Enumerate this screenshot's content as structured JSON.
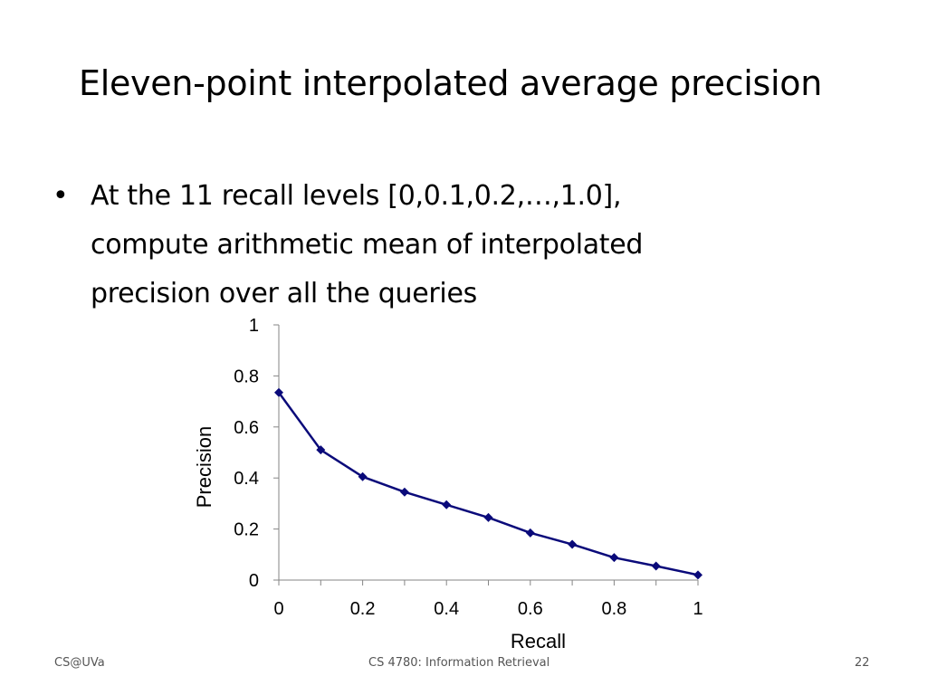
{
  "slide": {
    "title": "Eleven-point interpolated average precision",
    "bullet": {
      "symbol": "•",
      "lines": [
        "At the 11 recall levels [0,0.1,0.2,…,1.0],",
        "compute arithmetic mean of interpolated",
        "precision over all the queries"
      ]
    },
    "footer": {
      "left": "CS@UVa",
      "center": "CS 4780: Information Retrieval",
      "right": "22"
    }
  },
  "chart_data": {
    "type": "line",
    "title": "",
    "xlabel": "Recall",
    "ylabel": "Precision",
    "xlim": [
      0,
      1
    ],
    "ylim": [
      0,
      1
    ],
    "x_ticks": [
      "0",
      "0.2",
      "0.4",
      "0.6",
      "0.8",
      "1"
    ],
    "y_ticks": [
      "0",
      "0.2",
      "0.4",
      "0.6",
      "0.8",
      "1"
    ],
    "x_tick_values": [
      0,
      0.2,
      0.4,
      0.6,
      0.8,
      1
    ],
    "y_tick_values": [
      0,
      0.2,
      0.4,
      0.6,
      0.8,
      1
    ],
    "grid": false,
    "legend": "none",
    "marker": "diamond",
    "series": [
      {
        "color": "#0a0a7a",
        "x": [
          0,
          0.1,
          0.2,
          0.3,
          0.4,
          0.5,
          0.6,
          0.7,
          0.8,
          0.9,
          1.0
        ],
        "y": [
          0.735,
          0.51,
          0.405,
          0.345,
          0.295,
          0.245,
          0.185,
          0.14,
          0.088,
          0.055,
          0.02
        ]
      }
    ]
  }
}
